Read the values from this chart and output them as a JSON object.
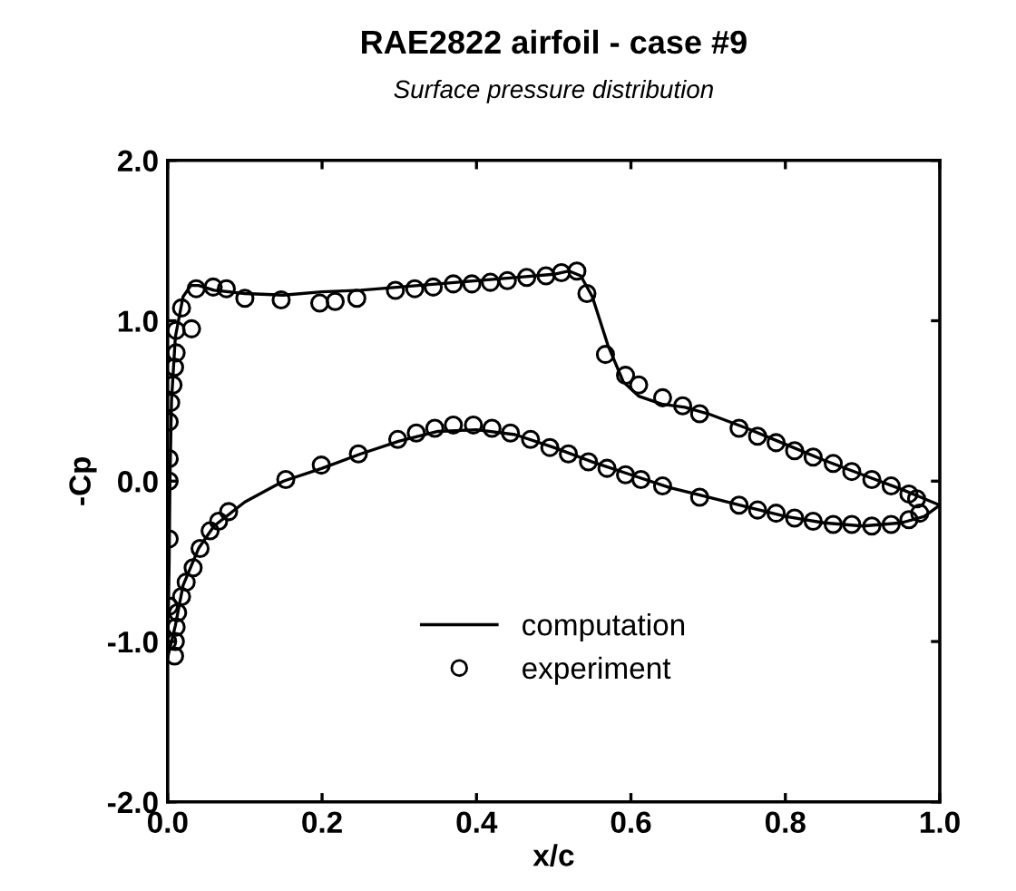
{
  "chart_data": {
    "type": "line",
    "title": "RAE2822 airfoil - case #9",
    "subtitle": "Surface pressure distribution",
    "xlabel": "x/c",
    "ylabel": "-Cp",
    "xlim": [
      0,
      1
    ],
    "xticks": [
      {
        "value": 0,
        "label": "0.0"
      },
      {
        "value": 0.2,
        "label": "0.2"
      },
      {
        "value": 0.4,
        "label": "0.4"
      },
      {
        "value": 0.6,
        "label": "0.6"
      },
      {
        "value": 0.8,
        "label": "0.8"
      },
      {
        "value": 1,
        "label": "1.0"
      }
    ],
    "ylim": [
      -2,
      2
    ],
    "yticks": [
      {
        "value": -2,
        "label": "-2.0"
      },
      {
        "value": -1,
        "label": "-1.0"
      },
      {
        "value": 0,
        "label": "0.0"
      },
      {
        "value": 1,
        "label": "1.0"
      },
      {
        "value": 2,
        "label": "2.0"
      }
    ],
    "grid": false,
    "legend": "bottom",
    "series": [
      {
        "name": "computation",
        "color": "#000000",
        "marker": "none",
        "line_style": "solid",
        "x": [
          0.0,
          0.002,
          0.003,
          0.005,
          0.01,
          0.02,
          0.03,
          0.04,
          0.06,
          0.1,
          0.15,
          0.2,
          0.25,
          0.3,
          0.35,
          0.4,
          0.45,
          0.5,
          0.52,
          0.535,
          0.55,
          0.57,
          0.59,
          0.61,
          0.64,
          0.67,
          0.7,
          0.75,
          0.8,
          0.85,
          0.9,
          0.95,
          1.0
        ],
        "values": [
          -1.1,
          -0.5,
          0.0,
          0.5,
          0.9,
          1.15,
          1.22,
          1.22,
          1.19,
          1.17,
          1.16,
          1.18,
          1.19,
          1.21,
          1.23,
          1.25,
          1.27,
          1.29,
          1.31,
          1.28,
          1.15,
          0.85,
          0.62,
          0.53,
          0.48,
          0.46,
          0.42,
          0.33,
          0.23,
          0.13,
          0.04,
          -0.05,
          -0.15
        ]
      },
      {
        "color": "#000000",
        "marker": "none",
        "line_style": "solid",
        "x": [
          0.0,
          0.01,
          0.02,
          0.04,
          0.06,
          0.1,
          0.15,
          0.2,
          0.25,
          0.3,
          0.35,
          0.4,
          0.45,
          0.5,
          0.55,
          0.6,
          0.65,
          0.7,
          0.75,
          0.8,
          0.85,
          0.9,
          0.95,
          0.98,
          1.0
        ],
        "values": [
          -1.1,
          -0.9,
          -0.65,
          -0.42,
          -0.28,
          -0.13,
          0.0,
          0.08,
          0.17,
          0.25,
          0.31,
          0.32,
          0.29,
          0.21,
          0.12,
          0.04,
          -0.04,
          -0.1,
          -0.16,
          -0.22,
          -0.26,
          -0.28,
          -0.26,
          -0.22,
          -0.15
        ]
      },
      {
        "name": "experiment",
        "type": "scatter",
        "color": "#000000",
        "marker": "circle",
        "x": [
          0.037,
          0.059,
          0.076,
          0.1,
          0.147,
          0.197,
          0.217,
          0.245,
          0.295,
          0.32,
          0.344,
          0.37,
          0.394,
          0.418,
          0.44,
          0.465,
          0.49,
          0.51,
          0.53,
          0.543,
          0.567,
          0.593,
          0.61,
          0.641,
          0.667,
          0.689,
          0.74,
          0.764,
          0.788,
          0.812,
          0.836,
          0.862,
          0.886,
          0.912,
          0.937,
          0.96,
          0.97,
          0.031,
          0.018,
          0.011,
          0.011,
          0.009,
          0.007,
          0.004,
          0.002,
          0.002,
          0.002,
          0.002,
          0.002,
          0.0,
          0.009,
          0.01,
          0.011,
          0.013,
          0.018,
          0.024,
          0.033,
          0.042,
          0.055,
          0.066,
          0.079,
          0.153,
          0.199,
          0.247,
          0.298,
          0.322,
          0.346,
          0.37,
          0.396,
          0.42,
          0.444,
          0.47,
          0.495,
          0.519,
          0.545,
          0.569,
          0.593,
          0.613,
          0.641,
          0.689,
          0.74,
          0.764,
          0.788,
          0.812,
          0.836,
          0.862,
          0.886,
          0.912,
          0.937,
          0.96,
          0.974
        ],
        "values": [
          1.2,
          1.21,
          1.2,
          1.14,
          1.13,
          1.11,
          1.12,
          1.14,
          1.19,
          1.2,
          1.21,
          1.23,
          1.23,
          1.24,
          1.25,
          1.27,
          1.28,
          1.3,
          1.31,
          1.17,
          0.79,
          0.66,
          0.6,
          0.52,
          0.47,
          0.42,
          0.33,
          0.28,
          0.24,
          0.19,
          0.15,
          0.11,
          0.06,
          0.01,
          -0.03,
          -0.08,
          -0.11,
          0.95,
          1.08,
          0.94,
          0.8,
          0.71,
          0.6,
          0.49,
          0.37,
          0.14,
          0.0,
          -0.36,
          -0.78,
          -1.0,
          -1.09,
          -1.0,
          -0.91,
          -0.82,
          -0.72,
          -0.63,
          -0.54,
          -0.42,
          -0.31,
          -0.25,
          -0.19,
          0.01,
          0.1,
          0.17,
          0.26,
          0.3,
          0.33,
          0.35,
          0.35,
          0.33,
          0.3,
          0.26,
          0.21,
          0.17,
          0.12,
          0.08,
          0.04,
          0.01,
          -0.03,
          -0.1,
          -0.15,
          -0.18,
          -0.2,
          -0.23,
          -0.25,
          -0.27,
          -0.27,
          -0.28,
          -0.27,
          -0.24,
          -0.2
        ]
      }
    ]
  }
}
